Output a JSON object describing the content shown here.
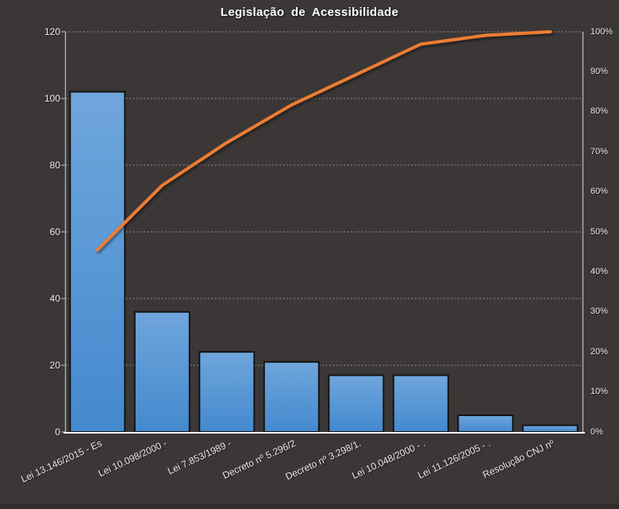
{
  "window": {
    "background_color": "#3A3736"
  },
  "chart_data": {
    "type": "bar",
    "subtype": "pareto-combo-bar-line",
    "title": "Legislação de Acessibilidade",
    "categories": [
      "Lei 13.146/2015 - Es",
      "Lei 10.098/2000 -",
      "Lei 7.853/1989 -",
      "Decreto nº 5.296/2",
      "Decreto nº 3.298/1.",
      "Lei 10.048/2000 - .",
      "Lei 11.126/2005 - .",
      "Resolução CNJ nº"
    ],
    "series": [
      {
        "role": "bars",
        "type": "bar",
        "axis": "left",
        "values": [
          102,
          36,
          24,
          21,
          17,
          17,
          5,
          2
        ],
        "fill_top": "#6FA6DC",
        "fill_bottom": "#4489CE",
        "border_color": "#141414"
      },
      {
        "role": "cumulative-line",
        "type": "line",
        "axis": "right",
        "values_pct": [
          45.5,
          61.6,
          72.3,
          81.7,
          89.3,
          96.9,
          99.1,
          100.0
        ],
        "color": "#ED7D31"
      }
    ],
    "left_axis": {
      "min": 0,
      "max": 120,
      "step": 20,
      "tick_labels": [
        "0",
        "20",
        "40",
        "60",
        "80",
        "100",
        "120"
      ]
    },
    "right_axis": {
      "min": 0,
      "max": 100,
      "step": 10,
      "tick_labels": [
        "0%",
        "10%",
        "20%",
        "30%",
        "40%",
        "50%",
        "60%",
        "70%",
        "80%",
        "90%",
        "100%"
      ]
    },
    "grid": {
      "horizontal": true,
      "style": "dotted",
      "color": "#D9D9D9"
    },
    "legend": "none",
    "colors": {
      "background": "#3A3736",
      "axis_line": "#B3B1AE",
      "category_axis_line": "#FFFFFF",
      "text": "#EDEBE8"
    }
  }
}
